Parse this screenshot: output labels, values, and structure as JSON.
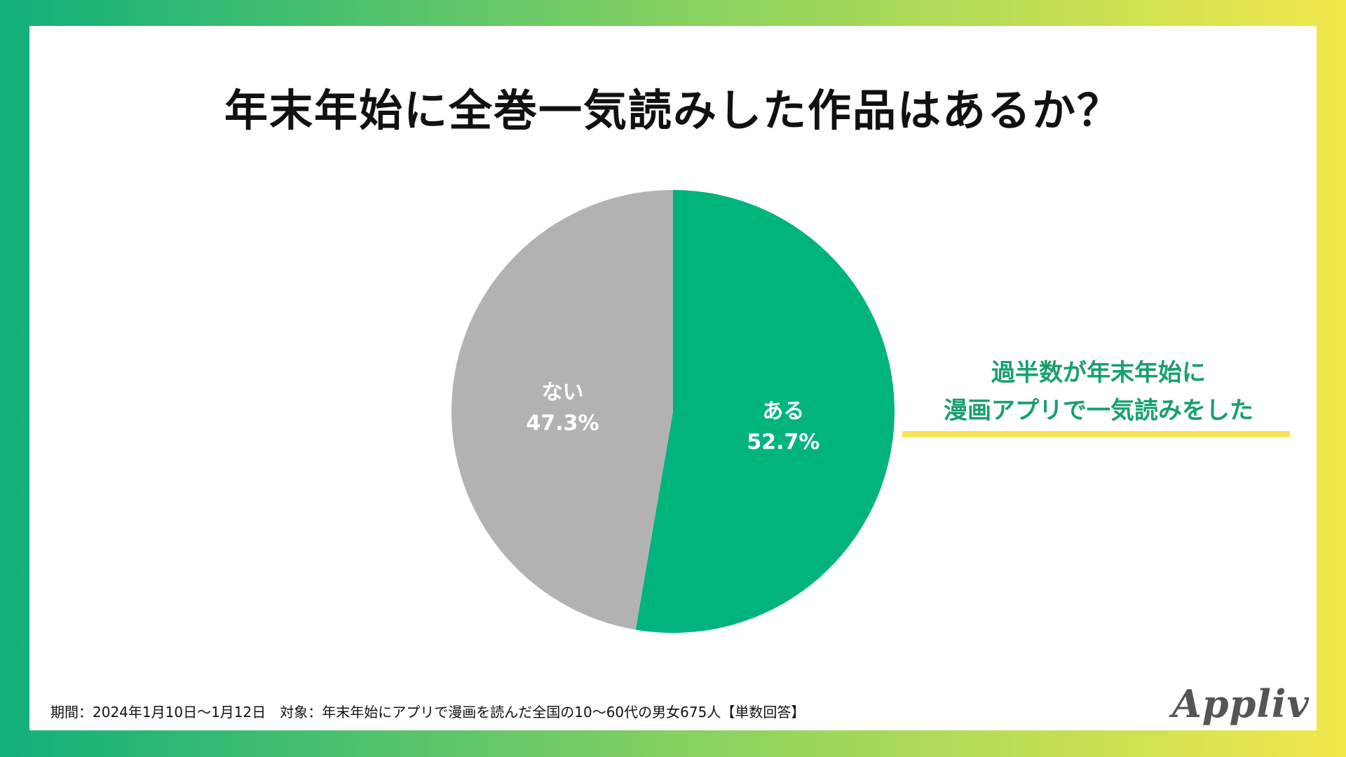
{
  "chart_data": {
    "type": "pie",
    "title": "年末年始に全巻一気読みした作品はあるか？",
    "slices": [
      {
        "label": "ある",
        "value": 52.7,
        "value_text": "52.7%",
        "color": "#00b47c"
      },
      {
        "label": "ない",
        "value": 47.3,
        "value_text": "47.3%",
        "color": "#b2b2b2"
      }
    ],
    "start": "12 o'clock",
    "direction": "clockwise"
  },
  "callout": {
    "line1": "過半数が年末年始に",
    "line2": "漫画アプリで一気読みをした",
    "text_color": "#17a06c",
    "underline_color": "#f7e257"
  },
  "footnote": "期間：2024年1月10日〜1月12日　対象：年末年始にアプリで漫画を読んだ全国の10〜60代の男女675人【単数回答】",
  "logo_text": "Appliv"
}
